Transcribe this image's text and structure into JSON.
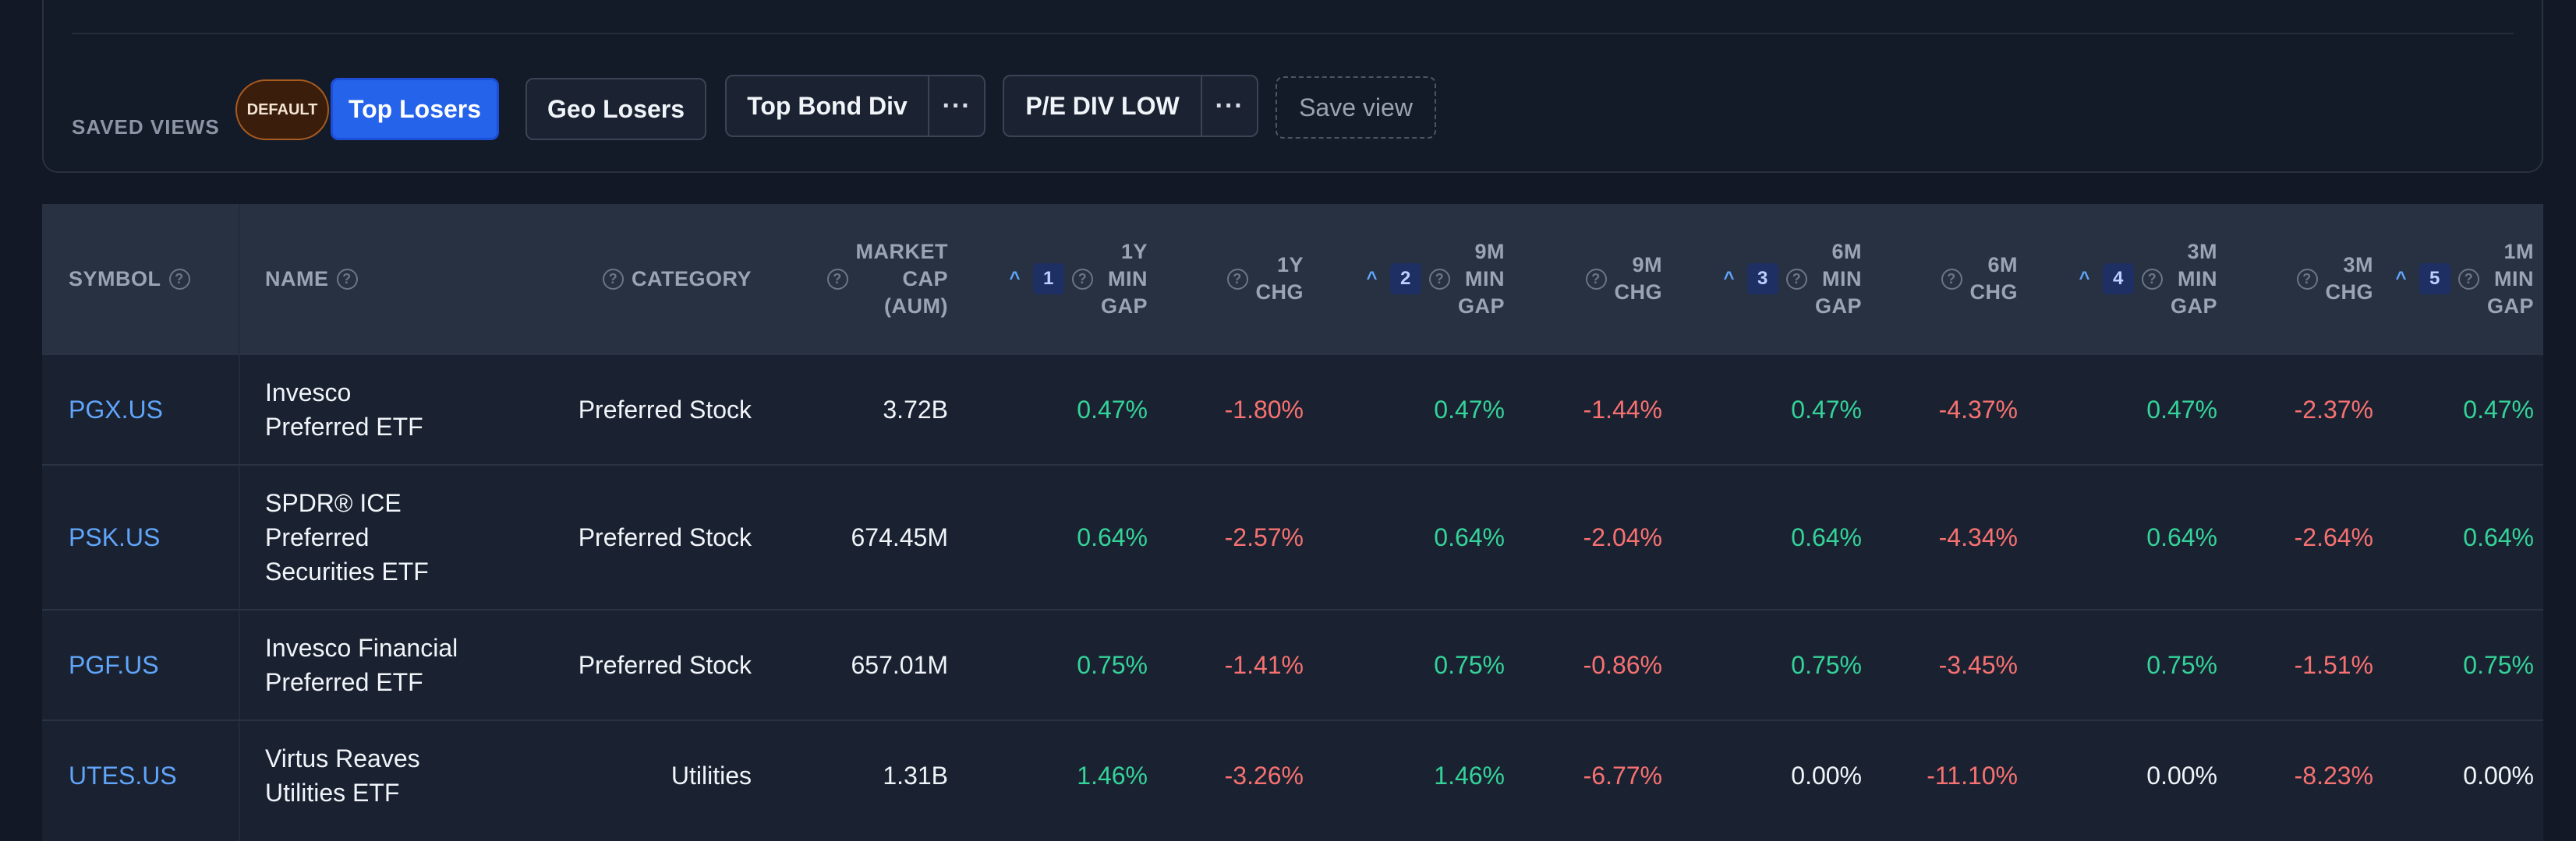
{
  "saved_views": {
    "label": "SAVED VIEWS",
    "default_badge": "DEFAULT",
    "views": [
      "Top Losers",
      "Geo Losers",
      "Top Bond Div",
      "P/E DIV LOW"
    ],
    "more": "···",
    "save_view": "Save view"
  },
  "table": {
    "headers": {
      "symbol": "SYMBOL",
      "name": "NAME",
      "category": "CATEGORY",
      "market_cap": [
        "MARKET",
        "CAP",
        "(AUM)"
      ],
      "y1_gap": [
        "1Y",
        "MIN",
        "GAP"
      ],
      "y1_chg": [
        "1Y",
        "CHG"
      ],
      "m9_gap": [
        "9M",
        "MIN",
        "GAP"
      ],
      "m9_chg": [
        "9M",
        "CHG"
      ],
      "m6_gap": [
        "6M",
        "MIN",
        "GAP"
      ],
      "m6_chg": [
        "6M",
        "CHG"
      ],
      "m3_gap": [
        "3M",
        "MIN",
        "GAP"
      ],
      "m3_chg": [
        "3M",
        "CHG"
      ],
      "m1_gap": [
        "1M",
        "MIN",
        "GAP"
      ]
    },
    "sort_caret": "^",
    "sort_numbers": [
      "1",
      "2",
      "3",
      "4",
      "5"
    ],
    "help_glyph": "?",
    "rows": [
      {
        "symbol": "PGX.US",
        "name": [
          "Invesco",
          "Preferred ETF"
        ],
        "category": "Preferred Stock",
        "market_cap": "3.72B",
        "values": [
          "0.47%",
          "-1.80%",
          "0.47%",
          "-1.44%",
          "0.47%",
          "-4.37%",
          "0.47%",
          "-2.37%",
          "0.47%"
        ]
      },
      {
        "symbol": "PSK.US",
        "name": [
          "SPDR® ICE",
          "Preferred",
          "Securities ETF"
        ],
        "category": "Preferred Stock",
        "market_cap": "674.45M",
        "values": [
          "0.64%",
          "-2.57%",
          "0.64%",
          "-2.04%",
          "0.64%",
          "-4.34%",
          "0.64%",
          "-2.64%",
          "0.64%"
        ]
      },
      {
        "symbol": "PGF.US",
        "name": [
          "Invesco Financial",
          "Preferred ETF"
        ],
        "category": "Preferred Stock",
        "market_cap": "657.01M",
        "values": [
          "0.75%",
          "-1.41%",
          "0.75%",
          "-0.86%",
          "0.75%",
          "-3.45%",
          "0.75%",
          "-1.51%",
          "0.75%"
        ]
      },
      {
        "symbol": "UTES.US",
        "name": [
          "Virtus Reaves",
          "Utilities ETF"
        ],
        "category": "Utilities",
        "market_cap": "1.31B",
        "values": [
          "1.46%",
          "-3.26%",
          "1.46%",
          "-6.77%",
          "0.00%",
          "-11.10%",
          "0.00%",
          "-8.23%",
          "0.00%"
        ]
      }
    ]
  },
  "colors": {
    "positive": "#34d399",
    "negative": "#f87171",
    "accent": "#2563eb",
    "link": "#60a5fa"
  }
}
